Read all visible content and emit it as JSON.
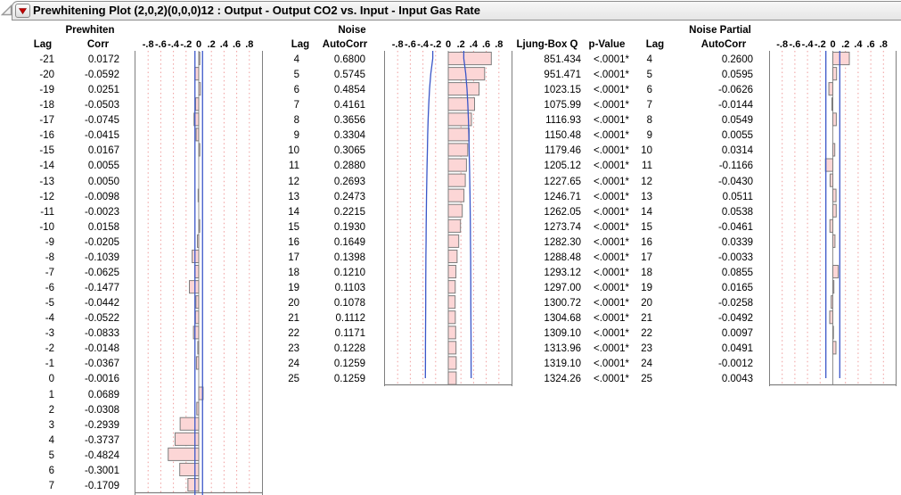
{
  "title": {
    "text": "Prewhitening Plot (2,0,2)(0,0,0)12 : Output - Output CO2 vs. Input - Input Gas Rate"
  },
  "icons": {
    "disclosure": "open-outline-triangle",
    "menu": "red-triangle-menu"
  },
  "columns": {
    "prewhiten": {
      "group_header": "Prewhiten",
      "lag_header": "Lag",
      "value_header": "Corr",
      "lags": [
        "-21",
        "-20",
        "-19",
        "-18",
        "-17",
        "-16",
        "-15",
        "-14",
        "-13",
        "-12",
        "-11",
        "-10",
        "-9",
        "-8",
        "-7",
        "-6",
        "-5",
        "-4",
        "-3",
        "-2",
        "-1",
        "0",
        "1",
        "2",
        "3",
        "4",
        "5",
        "6",
        "7"
      ],
      "values": [
        "0.0172",
        "-0.0592",
        "0.0251",
        "-0.0503",
        "-0.0745",
        "-0.0415",
        "0.0167",
        "0.0055",
        "0.0050",
        "-0.0098",
        "-0.0023",
        "0.0158",
        "-0.0205",
        "-0.1039",
        "-0.0625",
        "-0.1477",
        "-0.0442",
        "-0.0522",
        "-0.0833",
        "-0.0148",
        "-0.0367",
        "-0.0016",
        "0.0689",
        "-0.0308",
        "-0.2939",
        "-0.3737",
        "-0.4824",
        "-0.3001",
        "-0.1709"
      ]
    },
    "noise": {
      "group_header": "Noise",
      "lag_header": "Lag",
      "value_header": "AutoCorr",
      "lags": [
        "4",
        "5",
        "6",
        "7",
        "8",
        "9",
        "10",
        "11",
        "12",
        "13",
        "14",
        "15",
        "16",
        "17",
        "18",
        "19",
        "20",
        "21",
        "22",
        "23",
        "24",
        "25"
      ],
      "values": [
        "0.6800",
        "0.5745",
        "0.4854",
        "0.4161",
        "0.3656",
        "0.3304",
        "0.3065",
        "0.2880",
        "0.2693",
        "0.2473",
        "0.2215",
        "0.1930",
        "0.1649",
        "0.1398",
        "0.1210",
        "0.1103",
        "0.1078",
        "0.1112",
        "0.1171",
        "0.1228",
        "0.1259",
        "0.1259"
      ]
    },
    "ljung": {
      "q_header": "Ljung-Box Q",
      "p_header": "p-Value",
      "q": [
        "851.434",
        "951.471",
        "1023.15",
        "1075.99",
        "1116.93",
        "1150.48",
        "1179.46",
        "1205.12",
        "1227.65",
        "1246.71",
        "1262.05",
        "1273.74",
        "1282.30",
        "1288.48",
        "1293.12",
        "1297.00",
        "1300.72",
        "1304.68",
        "1309.10",
        "1313.96",
        "1319.10",
        "1324.26"
      ],
      "p": [
        "<.0001*",
        "<.0001*",
        "<.0001*",
        "<.0001*",
        "<.0001*",
        "<.0001*",
        "<.0001*",
        "<.0001*",
        "<.0001*",
        "<.0001*",
        "<.0001*",
        "<.0001*",
        "<.0001*",
        "<.0001*",
        "<.0001*",
        "<.0001*",
        "<.0001*",
        "<.0001*",
        "<.0001*",
        "<.0001*",
        "<.0001*",
        "<.0001*"
      ]
    },
    "noise_partial": {
      "group_header": "Noise Partial",
      "lag_header": "Lag",
      "value_header": "AutoCorr",
      "lags": [
        "4",
        "5",
        "6",
        "7",
        "8",
        "9",
        "10",
        "11",
        "12",
        "13",
        "14",
        "15",
        "16",
        "17",
        "18",
        "19",
        "20",
        "21",
        "22",
        "23",
        "24",
        "25"
      ],
      "values": [
        "0.2600",
        "0.0595",
        "-0.0626",
        "-0.0144",
        "0.0549",
        "0.0055",
        "0.0314",
        "-0.1166",
        "-0.0430",
        "0.0511",
        "0.0538",
        "-0.0461",
        "0.0339",
        "-0.0033",
        "0.0855",
        "0.0165",
        "-0.0258",
        "-0.0492",
        "0.0097",
        "0.0491",
        "-0.0012",
        "0.0043"
      ]
    }
  },
  "charts": {
    "axis_ticks": [
      "-.8",
      "-.6",
      "-.4",
      "-.2",
      "0",
      ".2",
      ".4",
      ".6",
      ".8"
    ],
    "tick_values": [
      -0.8,
      -0.6,
      -0.4,
      -0.2,
      0,
      0.2,
      0.4,
      0.6,
      0.8
    ],
    "axis_range": [
      -1,
      1
    ],
    "type": "horizontal lag bar plots; bar lengths equal the table values",
    "prewhiten_conf_limit": 0.06,
    "noise_conf_curve": [
      0.245,
      0.276,
      0.296,
      0.309,
      0.318,
      0.325,
      0.33,
      0.335,
      0.339,
      0.343,
      0.346,
      0.349,
      0.351,
      0.353,
      0.355,
      0.356,
      0.357,
      0.358,
      0.359,
      0.36,
      0.361,
      0.362
    ],
    "noise_partial_conf_limit": 0.11
  },
  "colors": {
    "bar_fill": "#fcd6d6",
    "bar_stroke": "#7d7d7d",
    "confidence_blue": "#3a56c8",
    "grid_pink": "#f09c9c",
    "zero_line": "#909090",
    "chart_border": "#7f7f7f",
    "red_triangle": "#c40000",
    "titlebar_border": "#8e8e8e"
  }
}
